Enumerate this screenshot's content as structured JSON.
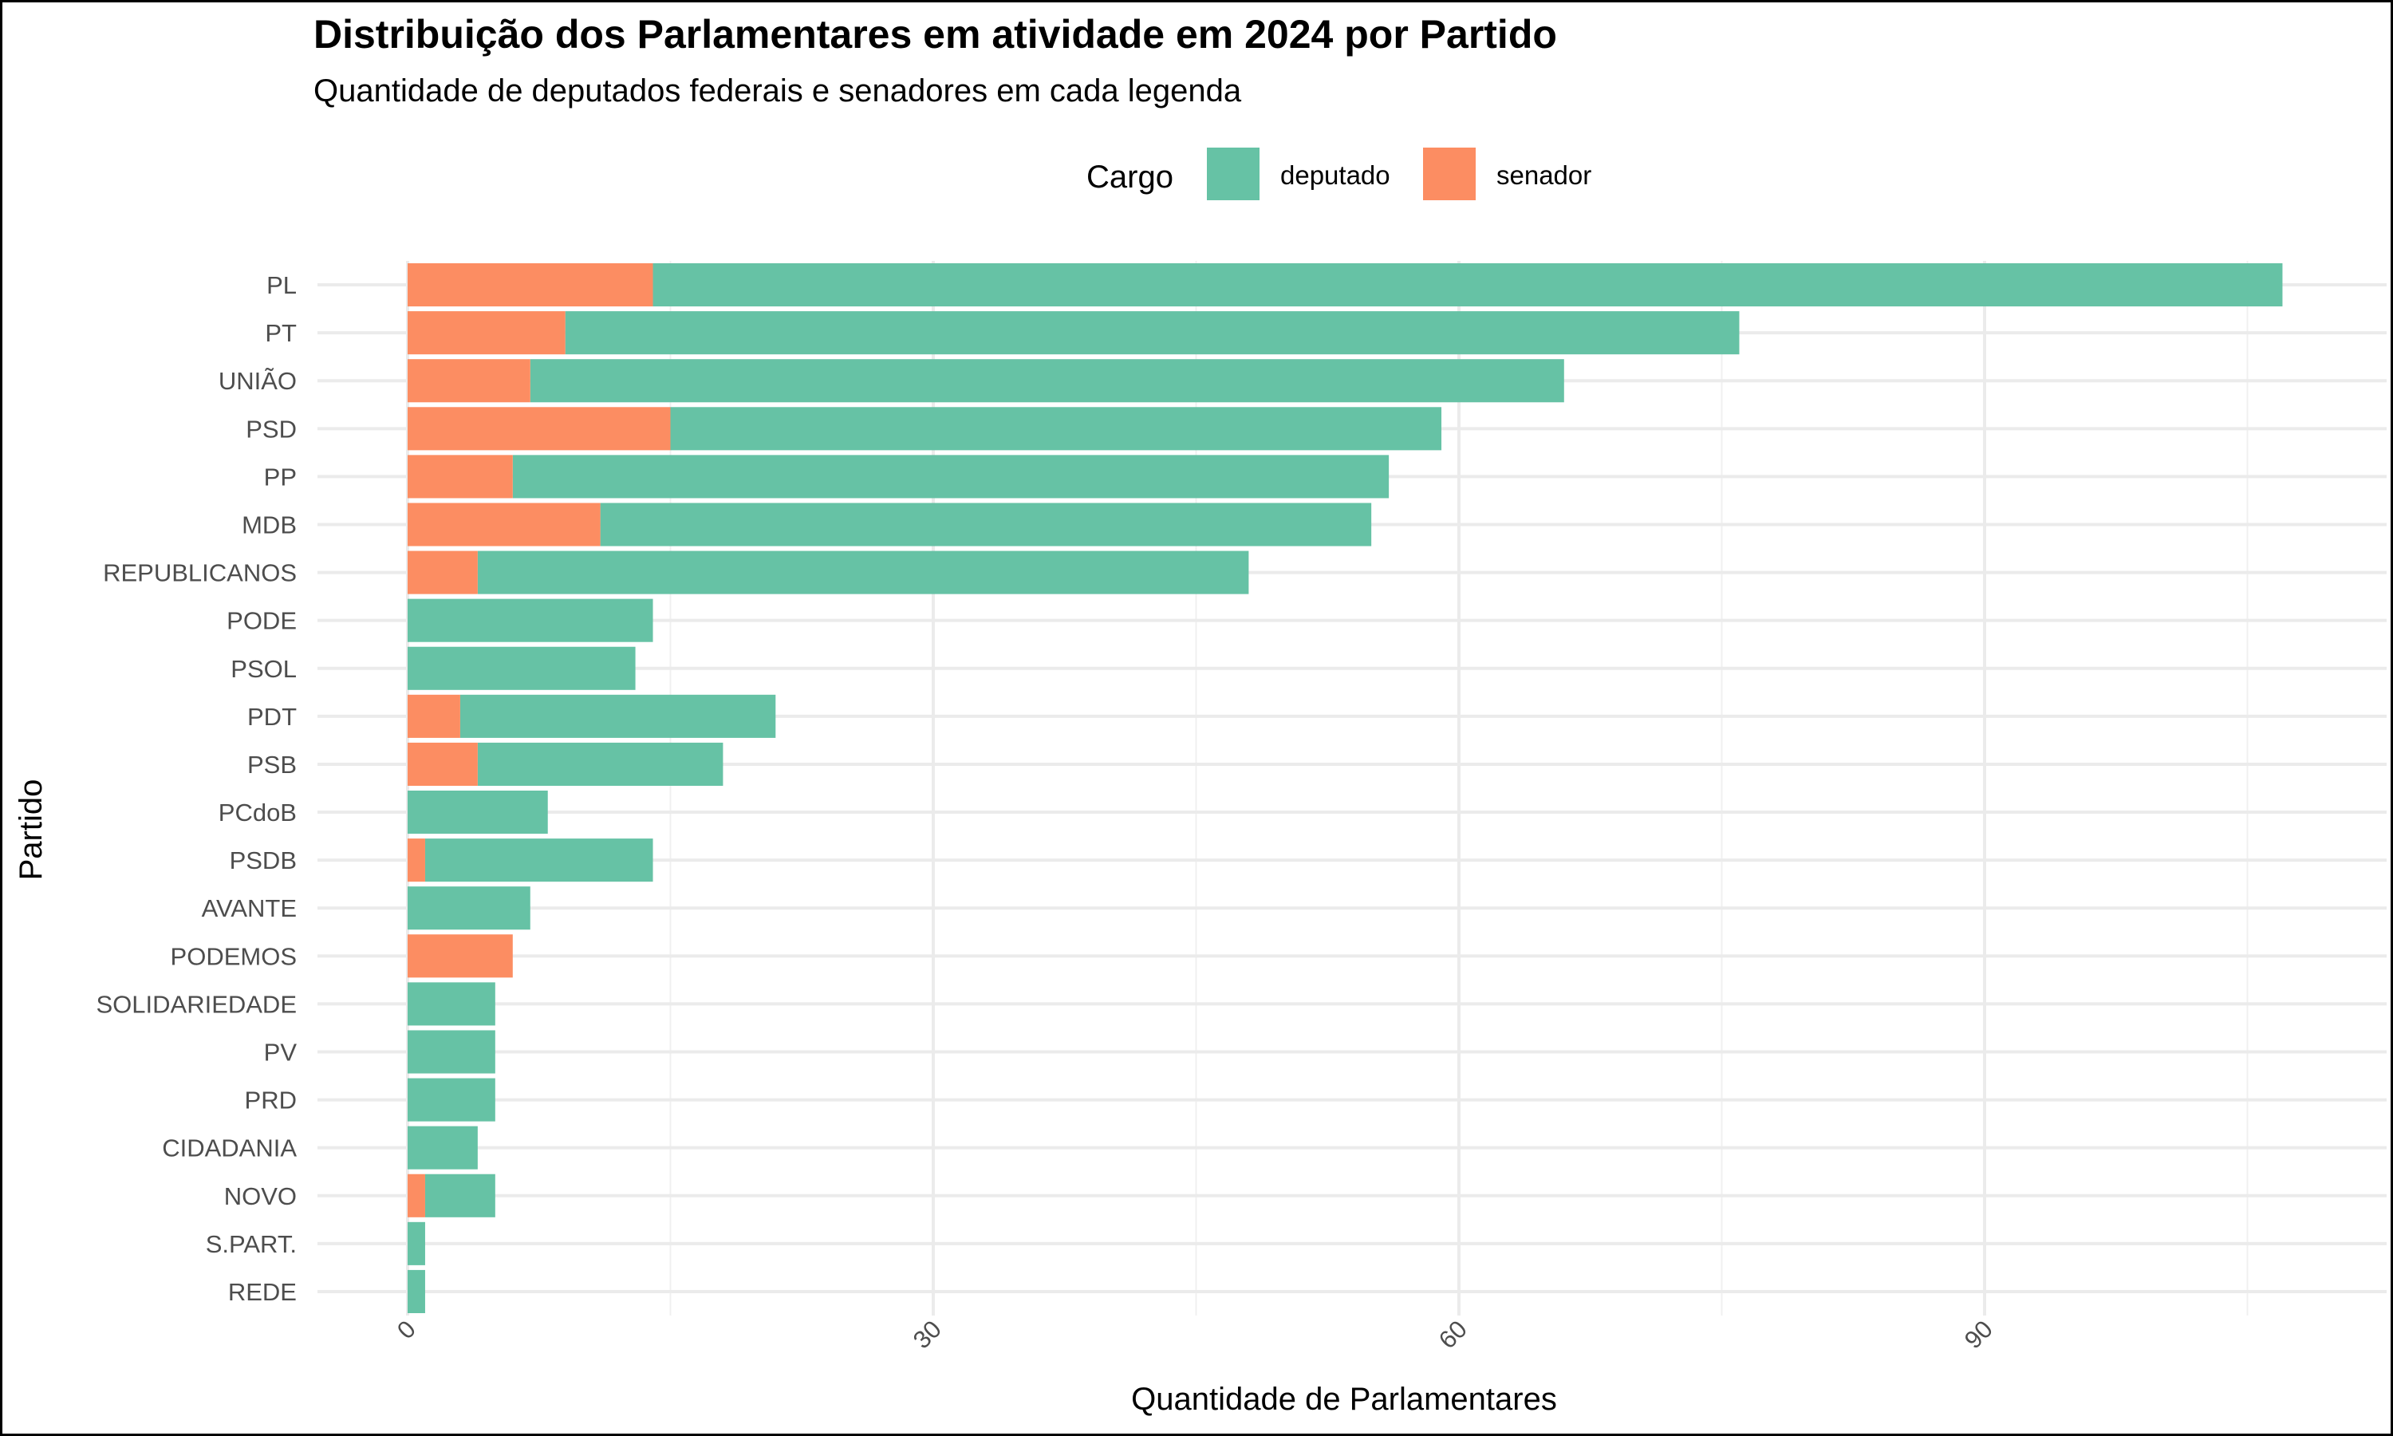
{
  "chart_data": {
    "type": "bar",
    "orientation": "horizontal",
    "stacked": true,
    "title": "Distribuição dos Parlamentares em atividade em 2024 por Partido",
    "subtitle": "Quantidade de deputados federais e senadores em cada legenda",
    "xlabel": "Quantidade de Parlamentares",
    "ylabel": "Partido",
    "legend_title": "Cargo",
    "legend_position": "top",
    "grid": true,
    "xlim": [
      -4.5,
      113
    ],
    "xticks": [
      "0",
      "30",
      "60",
      "90"
    ],
    "xtick_values": [
      0,
      30,
      60,
      90
    ],
    "categories": [
      "PL",
      "PT",
      "UNIÃO",
      "PSD",
      "PP",
      "MDB",
      "REPUBLICANOS",
      "PODE",
      "PSOL",
      "PDT",
      "PSB",
      "PCdoB",
      "PSDB",
      "AVANTE",
      "PODEMOS",
      "SOLIDARIEDADE",
      "PV",
      "PRD",
      "CIDADANIA",
      "NOVO",
      "S.PART.",
      "REDE"
    ],
    "series": [
      {
        "name": "deputado",
        "color": "#66c2a5",
        "values": [
          93,
          67,
          59,
          44,
          50,
          44,
          44,
          14,
          13,
          18,
          14,
          8,
          13,
          7,
          0,
          5,
          5,
          5,
          4,
          4,
          1,
          1
        ]
      },
      {
        "name": "senador",
        "color": "#fc8d62",
        "values": [
          14,
          9,
          7,
          15,
          6,
          11,
          4,
          0,
          0,
          3,
          4,
          0,
          1,
          0,
          6,
          0,
          0,
          0,
          0,
          1,
          0,
          0
        ]
      }
    ]
  }
}
